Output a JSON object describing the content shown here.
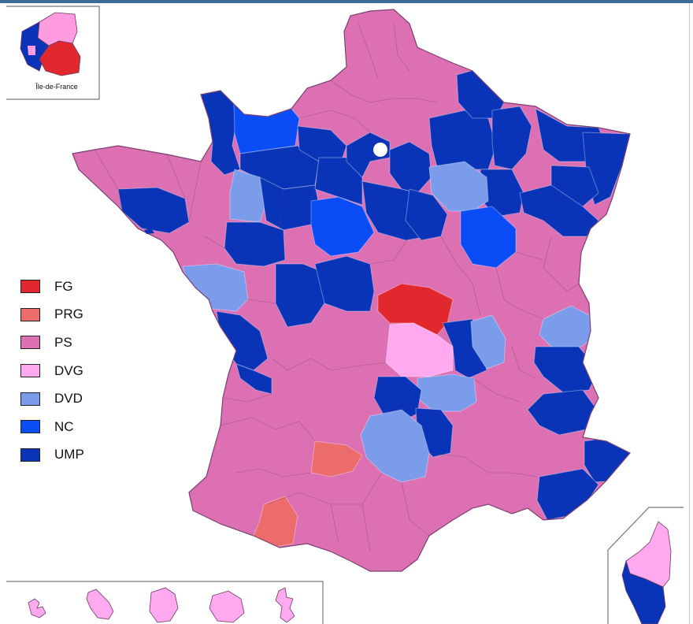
{
  "inset": {
    "caption": "Île-de-France"
  },
  "legend": {
    "items": [
      {
        "label": "FG",
        "color": "#e0282e"
      },
      {
        "label": "PRG",
        "color": "#ec6b6b"
      },
      {
        "label": "PS",
        "color": "#dc70b2"
      },
      {
        "label": "DVG",
        "color": "#ffaaf0"
      },
      {
        "label": "DVD",
        "color": "#7b9ceb"
      },
      {
        "label": "NC",
        "color": "#0a4cf6"
      },
      {
        "label": "UMP",
        "color": "#0a34b8"
      }
    ]
  },
  "colors": {
    "FG": "#e0282e",
    "PRG": "#ec6b6b",
    "PS": "#dc70b2",
    "DVG": "#ffaaf0",
    "DVD": "#7b9ceb",
    "NC": "#0a4cf6",
    "UMP": "#0a34b8",
    "border": "#5a3a55"
  },
  "overseas": [
    "Guadeloupe",
    "Martinique",
    "Guyane",
    "La Réunion",
    "Mayotte"
  ]
}
